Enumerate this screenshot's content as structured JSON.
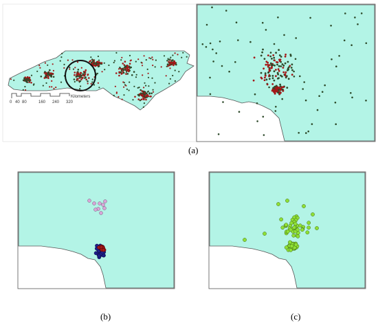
{
  "colors": {
    "land": "#b3f4e6",
    "outside": "#ffffff",
    "border": "#555555",
    "dot_dark": "#2d4a2a",
    "dot_red": "#a31818",
    "cluster_navy": "#1e1e8a",
    "cluster_pink": "#d8a6d8",
    "cluster_green": "#8fe036",
    "circle": "#111111"
  },
  "scale_bar": {
    "ticks": [
      "0",
      "40",
      "80",
      "160",
      "240",
      "320"
    ],
    "unit": "Kilometers"
  },
  "captions": {
    "a": "(a)",
    "b": "(b)",
    "c": "(c)"
  },
  "panels": [
    {
      "id": "a-left",
      "content": "statewide point map with highlighted circle"
    },
    {
      "id": "a-right",
      "content": "zoomed point map"
    },
    {
      "id": "b",
      "content": "cluster result"
    },
    {
      "id": "c",
      "content": "cluster result"
    }
  ]
}
